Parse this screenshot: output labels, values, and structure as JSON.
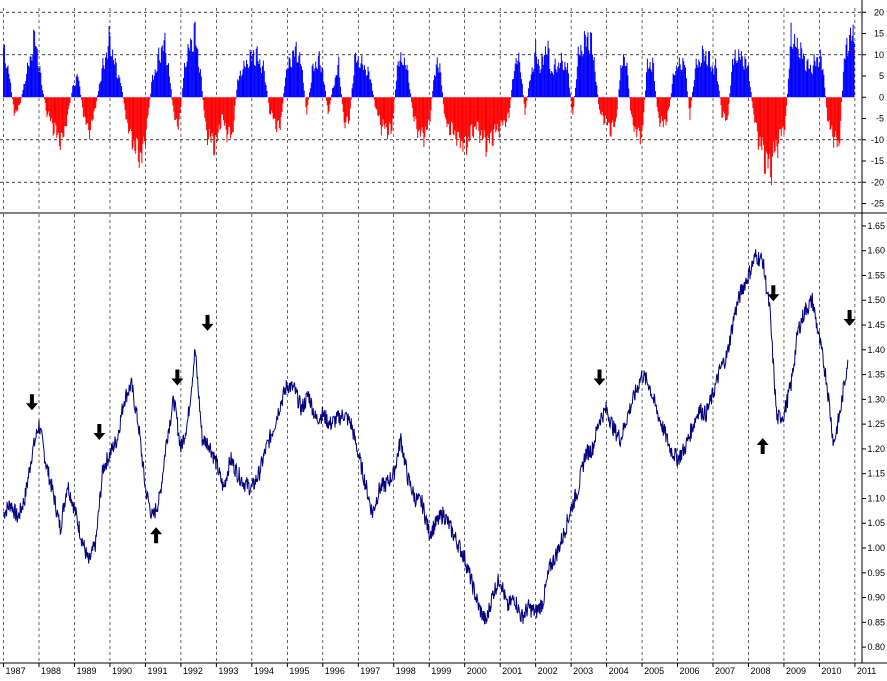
{
  "colors": {
    "background": "#ffffff",
    "positive_bar": "#0000ff",
    "negative_bar": "#ff0000",
    "price_line": "#000080",
    "grid": "#000000",
    "arrow": "#000000"
  },
  "chart_data": [
    {
      "type": "bar",
      "panel": "top",
      "x_range": [
        1986.9,
        2011.2
      ],
      "ylim": [
        -27,
        21
      ],
      "yticks": [
        20,
        15,
        10,
        5,
        0,
        -5,
        -10,
        -15,
        -20,
        -25
      ],
      "ytick_labels": [
        "20",
        "15",
        "10",
        "5",
        "0",
        "-5",
        "-10",
        "-15",
        "-20",
        "-25"
      ],
      "y_axis_side": "right",
      "grid_y": [
        20,
        10,
        -10,
        -20
      ],
      "positive_color": "#0000ff",
      "negative_color": "#ff0000",
      "series": [
        {
          "x": [
            1987.0,
            1987.15,
            1987.3,
            1987.45,
            1987.6,
            1987.75,
            1987.9,
            1988.05,
            1988.2,
            1988.35,
            1988.5,
            1988.65,
            1988.8,
            1988.95,
            1989.1,
            1989.25,
            1989.4,
            1989.55,
            1989.7,
            1989.85,
            1990.0,
            1990.15,
            1990.3,
            1990.45,
            1990.6,
            1990.75,
            1990.9,
            1991.05,
            1991.2,
            1991.35,
            1991.5,
            1991.65,
            1991.8,
            1991.95,
            1992.1,
            1992.25,
            1992.4,
            1992.55,
            1992.7,
            1992.85,
            1993.0,
            1993.15,
            1993.3,
            1993.45,
            1993.6,
            1993.75,
            1993.9,
            1994.05,
            1994.2,
            1994.35,
            1994.5,
            1994.65,
            1994.8,
            1994.95,
            1995.1,
            1995.25,
            1995.4,
            1995.55,
            1995.7,
            1995.85,
            1996.0,
            1996.15,
            1996.3,
            1996.45,
            1996.6,
            1996.75,
            1996.9,
            1997.05,
            1997.2,
            1997.35,
            1997.5,
            1997.65,
            1997.8,
            1997.95,
            1998.1,
            1998.25,
            1998.4,
            1998.55,
            1998.7,
            1998.85,
            1999.0,
            1999.15,
            1999.3,
            1999.45,
            1999.6,
            1999.75,
            1999.9,
            2000.05,
            2000.2,
            2000.35,
            2000.5,
            2000.65,
            2000.8,
            2000.95,
            2001.1,
            2001.25,
            2001.4,
            2001.55,
            2001.7,
            2001.85,
            2002.0,
            2002.15,
            2002.3,
            2002.45,
            2002.6,
            2002.75,
            2002.9,
            2003.05,
            2003.2,
            2003.35,
            2003.5,
            2003.65,
            2003.8,
            2003.95,
            2004.1,
            2004.25,
            2004.4,
            2004.55,
            2004.7,
            2004.85,
            2005.0,
            2005.15,
            2005.3,
            2005.45,
            2005.6,
            2005.75,
            2005.9,
            2006.05,
            2006.2,
            2006.35,
            2006.5,
            2006.65,
            2006.8,
            2006.95,
            2007.1,
            2007.25,
            2007.4,
            2007.55,
            2007.7,
            2007.85,
            2008.0,
            2008.15,
            2008.3,
            2008.45,
            2008.6,
            2008.75,
            2008.9,
            2009.05,
            2009.2,
            2009.35,
            2009.5,
            2009.65,
            2009.8,
            2009.95,
            2010.1,
            2010.25,
            2010.4,
            2010.55,
            2010.7,
            2010.85
          ],
          "values": [
            14,
            8,
            -5,
            -3,
            5,
            12,
            19,
            6,
            -4,
            -8,
            -12,
            -14,
            -6,
            3,
            7,
            -5,
            -11,
            -6,
            4,
            12,
            18,
            10,
            5,
            -6,
            -13,
            -17,
            -19,
            -8,
            6,
            11,
            18,
            10,
            -6,
            -9,
            9,
            16,
            20,
            8,
            -10,
            -14,
            -15,
            -6,
            -11,
            -12,
            5,
            9,
            11,
            14,
            12,
            8,
            -4,
            -8,
            -10,
            7,
            12,
            15,
            10,
            -5,
            8,
            12,
            9,
            -6,
            4,
            10,
            -8,
            -7,
            12,
            11,
            9,
            6,
            -4,
            -9,
            -10,
            -11,
            10,
            12,
            8,
            -6,
            -11,
            -12,
            -9,
            8,
            11,
            -8,
            -10,
            -12,
            -14,
            -15,
            -11,
            -9,
            -13,
            -15,
            -12,
            -10,
            -8,
            -6,
            10,
            12,
            -5,
            6,
            14,
            9,
            17,
            8,
            10,
            11,
            9,
            -6,
            13,
            16,
            20,
            12,
            -5,
            -7,
            -10,
            -9,
            9,
            13,
            -7,
            -11,
            -12,
            10,
            11,
            -6,
            -9,
            -5,
            8,
            10,
            11,
            -6,
            9,
            12,
            14,
            10,
            9,
            -5,
            -8,
            11,
            13,
            12,
            9,
            -6,
            -14,
            -19,
            -23,
            -17,
            -12,
            -8,
            19,
            16,
            14,
            10,
            9,
            13,
            10,
            -9,
            -12,
            -16,
            12,
            19
          ]
        }
      ]
    },
    {
      "type": "line",
      "panel": "bottom",
      "x_range": [
        1986.9,
        2011.2
      ],
      "ylim": [
        0.77,
        1.67
      ],
      "yticks": [
        1.65,
        1.6,
        1.55,
        1.5,
        1.45,
        1.4,
        1.35,
        1.3,
        1.25,
        1.2,
        1.15,
        1.1,
        1.05,
        1.0,
        0.95,
        0.9,
        0.85,
        0.8
      ],
      "ytick_labels": [
        "1.65",
        "1.60",
        "1.55",
        "1.50",
        "1.45",
        "1.40",
        "1.35",
        "1.30",
        "1.25",
        "1.20",
        "1.15",
        "1.10",
        "1.05",
        "1.00",
        "0.95",
        "0.90",
        "0.85",
        "0.80"
      ],
      "y_axis_side": "right",
      "xticks": [
        1987,
        1988,
        1989,
        1990,
        1991,
        1992,
        1993,
        1994,
        1995,
        1996,
        1997,
        1998,
        1999,
        2000,
        2001,
        2002,
        2003,
        2004,
        2005,
        2006,
        2007,
        2008,
        2009,
        2010,
        2011
      ],
      "xtick_labels": [
        "1987",
        "1988",
        "1989",
        "1990",
        "1991",
        "1992",
        "1993",
        "1994",
        "1995",
        "1996",
        "1997",
        "1998",
        "1999",
        "2000",
        "2001",
        "2002",
        "2003",
        "2004",
        "2005",
        "2006",
        "2007",
        "2008",
        "2009",
        "2010",
        "2011"
      ],
      "grid_x": "dashed vertical at each year",
      "series": [
        {
          "x": [
            1987.0,
            1987.2,
            1987.4,
            1987.6,
            1987.8,
            1988.0,
            1988.2,
            1988.4,
            1988.6,
            1988.8,
            1989.0,
            1989.2,
            1989.4,
            1989.6,
            1989.8,
            1990.0,
            1990.2,
            1990.4,
            1990.6,
            1990.8,
            1991.0,
            1991.2,
            1991.4,
            1991.6,
            1991.8,
            1992.0,
            1992.2,
            1992.4,
            1992.6,
            1992.8,
            1993.0,
            1993.2,
            1993.4,
            1993.6,
            1993.8,
            1994.0,
            1994.2,
            1994.4,
            1994.6,
            1994.8,
            1995.0,
            1995.2,
            1995.4,
            1995.6,
            1995.8,
            1996.0,
            1996.2,
            1996.4,
            1996.6,
            1996.8,
            1997.0,
            1997.2,
            1997.4,
            1997.6,
            1997.8,
            1998.0,
            1998.2,
            1998.4,
            1998.6,
            1998.8,
            1999.0,
            1999.2,
            1999.4,
            1999.6,
            1999.8,
            2000.0,
            2000.2,
            2000.4,
            2000.6,
            2000.8,
            2001.0,
            2001.2,
            2001.4,
            2001.6,
            2001.8,
            2002.0,
            2002.2,
            2002.4,
            2002.6,
            2002.8,
            2003.0,
            2003.2,
            2003.4,
            2003.6,
            2003.8,
            2004.0,
            2004.2,
            2004.4,
            2004.6,
            2004.8,
            2005.0,
            2005.2,
            2005.4,
            2005.6,
            2005.8,
            2006.0,
            2006.2,
            2006.4,
            2006.6,
            2006.8,
            2007.0,
            2007.2,
            2007.4,
            2007.6,
            2007.8,
            2008.0,
            2008.2,
            2008.4,
            2008.6,
            2008.8,
            2009.0,
            2009.2,
            2009.4,
            2009.6,
            2009.8,
            2010.0,
            2010.2,
            2010.4,
            2010.6,
            2010.8
          ],
          "values": [
            1.07,
            1.09,
            1.06,
            1.1,
            1.19,
            1.25,
            1.17,
            1.11,
            1.04,
            1.13,
            1.08,
            1.02,
            0.97,
            1.01,
            1.16,
            1.19,
            1.22,
            1.3,
            1.33,
            1.25,
            1.12,
            1.06,
            1.1,
            1.22,
            1.3,
            1.2,
            1.26,
            1.4,
            1.22,
            1.21,
            1.17,
            1.12,
            1.18,
            1.15,
            1.13,
            1.12,
            1.15,
            1.2,
            1.24,
            1.29,
            1.33,
            1.32,
            1.28,
            1.31,
            1.26,
            1.27,
            1.25,
            1.26,
            1.27,
            1.25,
            1.19,
            1.13,
            1.07,
            1.12,
            1.13,
            1.15,
            1.22,
            1.14,
            1.1,
            1.09,
            1.03,
            1.05,
            1.07,
            1.04,
            1.01,
            0.98,
            0.93,
            0.88,
            0.85,
            0.91,
            0.94,
            0.88,
            0.9,
            0.86,
            0.88,
            0.87,
            0.89,
            0.96,
            0.99,
            1.03,
            1.08,
            1.12,
            1.19,
            1.2,
            1.26,
            1.28,
            1.24,
            1.22,
            1.27,
            1.31,
            1.35,
            1.33,
            1.28,
            1.24,
            1.2,
            1.18,
            1.2,
            1.24,
            1.28,
            1.27,
            1.31,
            1.36,
            1.39,
            1.47,
            1.52,
            1.55,
            1.59,
            1.58,
            1.48,
            1.26,
            1.27,
            1.33,
            1.44,
            1.48,
            1.5,
            1.42,
            1.34,
            1.21,
            1.28,
            1.38
          ]
        }
      ],
      "arrows": [
        {
          "x": 1987.8,
          "y": 1.27,
          "direction": "down"
        },
        {
          "x": 1989.7,
          "y": 1.21,
          "direction": "down"
        },
        {
          "x": 1991.3,
          "y": 1.05,
          "direction": "up"
        },
        {
          "x": 1991.9,
          "y": 1.32,
          "direction": "down"
        },
        {
          "x": 1992.75,
          "y": 1.43,
          "direction": "down"
        },
        {
          "x": 2003.8,
          "y": 1.32,
          "direction": "down"
        },
        {
          "x": 2008.4,
          "y": 1.23,
          "direction": "up"
        },
        {
          "x": 2008.7,
          "y": 1.49,
          "direction": "down"
        },
        {
          "x": 2010.85,
          "y": 1.44,
          "direction": "down"
        }
      ]
    }
  ]
}
